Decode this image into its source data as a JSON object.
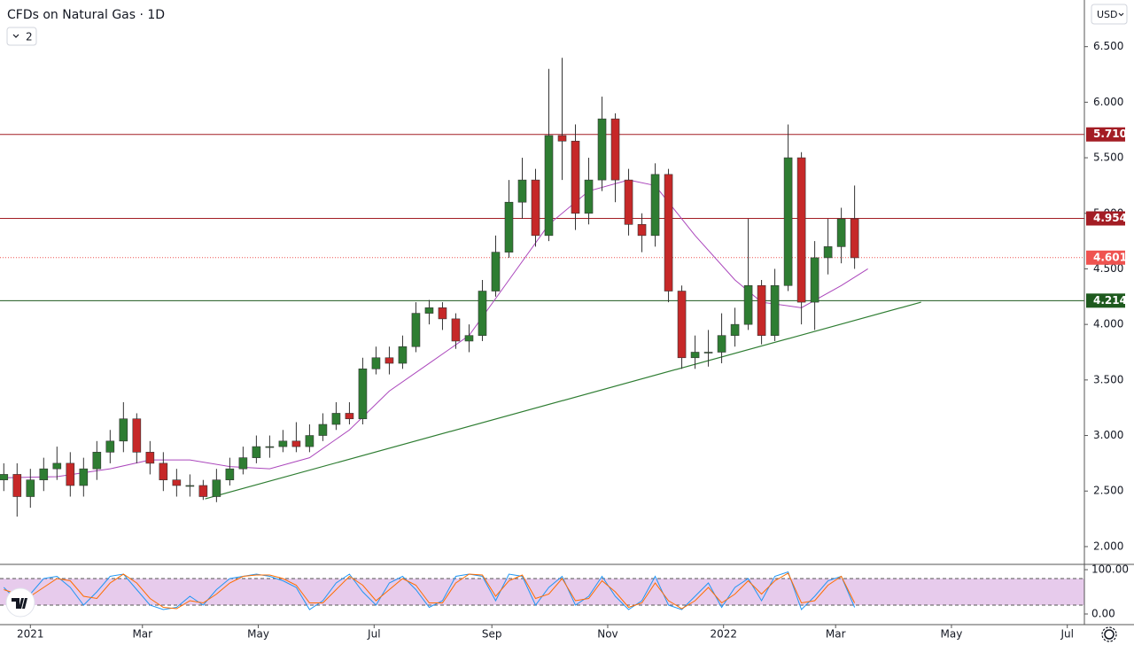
{
  "chart_data": [
    {
      "type": "candlestick",
      "title": "CFDs on Natural Gas · 1D",
      "x": [
        -14,
        -7,
        0,
        7,
        14,
        21,
        28,
        35,
        42,
        49,
        56,
        63,
        70,
        77,
        84,
        91,
        98,
        105,
        112,
        119,
        126,
        133,
        140,
        147,
        154,
        161,
        168,
        175,
        182,
        189,
        196,
        203,
        210,
        217,
        224,
        231,
        238,
        245,
        252,
        259,
        266,
        273,
        280,
        287,
        294,
        301,
        308,
        315,
        322,
        329,
        336,
        343,
        350,
        357,
        364,
        371,
        378,
        385,
        392,
        399,
        406,
        413,
        420,
        427,
        434
      ],
      "open": [
        2.6,
        2.65,
        2.45,
        2.6,
        2.7,
        2.75,
        2.55,
        2.7,
        2.85,
        2.95,
        3.15,
        2.85,
        2.75,
        2.6,
        2.55,
        2.55,
        2.45,
        2.6,
        2.7,
        2.8,
        2.9,
        2.9,
        2.95,
        2.9,
        3.0,
        3.1,
        3.2,
        3.15,
        3.6,
        3.7,
        3.65,
        3.8,
        4.1,
        4.15,
        4.05,
        3.85,
        3.9,
        4.3,
        4.65,
        5.1,
        5.3,
        4.8,
        5.7,
        5.65,
        5.0,
        5.3,
        5.85,
        5.3,
        4.9,
        4.8,
        5.35,
        4.3,
        3.7,
        3.75,
        3.75,
        3.9,
        4.0,
        4.35,
        3.9,
        4.35,
        5.5,
        4.2,
        4.6,
        4.7,
        4.95
      ],
      "high": [
        2.75,
        2.75,
        2.7,
        2.8,
        2.9,
        2.85,
        2.8,
        2.95,
        3.05,
        3.3,
        3.2,
        2.95,
        2.85,
        2.7,
        2.65,
        2.6,
        2.7,
        2.8,
        2.9,
        3.0,
        3.0,
        3.05,
        3.12,
        3.1,
        3.2,
        3.3,
        3.3,
        3.7,
        3.8,
        3.8,
        3.9,
        4.2,
        4.22,
        4.2,
        4.1,
        4.0,
        4.4,
        4.8,
        5.3,
        5.5,
        5.4,
        6.3,
        6.4,
        5.8,
        5.5,
        6.05,
        5.9,
        5.4,
        5.0,
        5.45,
        5.4,
        4.35,
        3.9,
        3.95,
        4.1,
        4.15,
        4.95,
        4.4,
        4.5,
        5.8,
        5.55,
        4.75,
        4.95,
        5.05,
        5.25
      ],
      "low": [
        2.5,
        2.27,
        2.35,
        2.5,
        2.6,
        2.45,
        2.45,
        2.6,
        2.75,
        2.85,
        2.75,
        2.65,
        2.5,
        2.45,
        2.45,
        2.42,
        2.4,
        2.55,
        2.65,
        2.75,
        2.8,
        2.85,
        2.85,
        2.85,
        2.95,
        3.05,
        3.1,
        3.1,
        3.55,
        3.55,
        3.6,
        3.75,
        4.0,
        3.95,
        3.78,
        3.75,
        3.85,
        4.25,
        4.6,
        4.95,
        4.7,
        4.75,
        5.3,
        4.85,
        4.9,
        5.2,
        5.1,
        4.8,
        4.65,
        4.7,
        4.2,
        3.6,
        3.6,
        3.62,
        3.65,
        3.8,
        3.95,
        3.82,
        3.85,
        4.3,
        4.0,
        3.95,
        4.45,
        4.55,
        4.5
      ],
      "close": [
        2.65,
        2.45,
        2.6,
        2.7,
        2.75,
        2.55,
        2.7,
        2.85,
        2.95,
        3.15,
        2.85,
        2.75,
        2.6,
        2.55,
        2.55,
        2.45,
        2.6,
        2.7,
        2.8,
        2.9,
        2.9,
        2.95,
        2.9,
        3.0,
        3.1,
        3.2,
        3.15,
        3.6,
        3.7,
        3.65,
        3.8,
        4.1,
        4.15,
        4.05,
        3.85,
        3.9,
        4.3,
        4.65,
        5.1,
        5.3,
        4.8,
        5.7,
        5.65,
        5.0,
        5.3,
        5.85,
        5.3,
        4.9,
        4.8,
        5.35,
        4.3,
        3.7,
        3.75,
        3.75,
        3.9,
        4.0,
        4.35,
        3.9,
        4.35,
        5.5,
        4.2,
        4.6,
        4.7,
        4.95,
        4.6
      ],
      "up_color": "#2e7d32",
      "down_color": "#c62828",
      "moving_average": {
        "color": "#ab47bc",
        "x": [
          -14,
          14,
          42,
          63,
          84,
          105,
          126,
          147,
          168,
          189,
          210,
          231,
          252,
          273,
          294,
          315,
          329,
          350,
          371,
          385,
          406,
          427,
          441
        ],
        "values": [
          2.62,
          2.63,
          2.7,
          2.78,
          2.78,
          2.72,
          2.7,
          2.8,
          3.05,
          3.4,
          3.65,
          3.9,
          4.4,
          4.9,
          5.2,
          5.3,
          5.25,
          4.8,
          4.4,
          4.2,
          4.15,
          4.35,
          4.5
        ]
      },
      "trendline": {
        "color": "#2e7d32",
        "x": [
          92,
          469
        ],
        "values": [
          2.43,
          4.2
        ]
      },
      "levels": [
        {
          "value": 5.71,
          "label": "5.710",
          "color": "#a31d24",
          "style": "solid"
        },
        {
          "value": 4.954,
          "label": "4.954",
          "color": "#a31d24",
          "style": "solid"
        },
        {
          "value": 4.601,
          "label": "4.601",
          "color": "#ef5350",
          "style": "dotted"
        },
        {
          "value": 4.214,
          "label": "4.214",
          "color": "#1e5a1e",
          "style": "solid"
        }
      ],
      "xlim": [
        -16,
        555
      ],
      "xticks": [
        {
          "value": 0,
          "label": "2021"
        },
        {
          "value": 59,
          "label": "Mar"
        },
        {
          "value": 120,
          "label": "May"
        },
        {
          "value": 181,
          "label": "Jul"
        },
        {
          "value": 243,
          "label": "Sep"
        },
        {
          "value": 304,
          "label": "Nov"
        },
        {
          "value": 365,
          "label": "2022"
        },
        {
          "value": 424,
          "label": "Mar"
        },
        {
          "value": 485,
          "label": "May"
        },
        {
          "value": 546,
          "label": "Jul"
        }
      ],
      "ylim": [
        1.84,
        6.92
      ],
      "yticks": [
        {
          "value": 2,
          "label": "2.000"
        },
        {
          "value": 2.5,
          "label": "2.500"
        },
        {
          "value": 3,
          "label": "3.000"
        },
        {
          "value": 3.5,
          "label": "3.500"
        },
        {
          "value": 4,
          "label": "4.000"
        },
        {
          "value": 4.5,
          "label": "4.500"
        },
        {
          "value": 5,
          "label": "5.000"
        },
        {
          "value": 5.5,
          "label": "5.500"
        },
        {
          "value": 6,
          "label": "6.000"
        },
        {
          "value": 6.5,
          "label": "6.500"
        }
      ]
    },
    {
      "type": "line",
      "x": [
        -14,
        -7,
        0,
        7,
        14,
        21,
        28,
        35,
        42,
        49,
        56,
        63,
        70,
        77,
        84,
        91,
        98,
        105,
        112,
        119,
        126,
        133,
        140,
        147,
        154,
        161,
        168,
        175,
        182,
        189,
        196,
        203,
        210,
        217,
        224,
        231,
        238,
        245,
        252,
        259,
        266,
        273,
        280,
        287,
        294,
        301,
        308,
        315,
        322,
        329,
        336,
        343,
        350,
        357,
        364,
        371,
        378,
        385,
        392,
        399,
        406,
        413,
        420,
        427,
        434
      ],
      "series": [
        {
          "color": "#2196f3",
          "values": [
            60,
            30,
            45,
            80,
            85,
            60,
            20,
            50,
            85,
            90,
            55,
            20,
            10,
            15,
            40,
            20,
            55,
            80,
            85,
            90,
            85,
            75,
            60,
            10,
            30,
            70,
            90,
            50,
            20,
            70,
            85,
            55,
            15,
            30,
            85,
            90,
            85,
            30,
            90,
            85,
            20,
            60,
            85,
            20,
            40,
            85,
            40,
            10,
            30,
            85,
            20,
            10,
            40,
            70,
            15,
            60,
            80,
            30,
            85,
            95,
            10,
            40,
            75,
            85,
            15
          ]
        },
        {
          "color": "#ff6d00",
          "values": [
            55,
            45,
            40,
            60,
            80,
            75,
            40,
            35,
            70,
            90,
            70,
            35,
            15,
            12,
            30,
            25,
            45,
            70,
            85,
            88,
            88,
            80,
            65,
            25,
            25,
            55,
            85,
            65,
            30,
            55,
            80,
            65,
            25,
            25,
            70,
            90,
            88,
            40,
            75,
            88,
            35,
            45,
            80,
            30,
            35,
            75,
            50,
            15,
            25,
            70,
            30,
            12,
            30,
            60,
            25,
            45,
            75,
            45,
            75,
            92,
            25,
            30,
            65,
            85,
            25
          ]
        }
      ],
      "bands": [
        20,
        80
      ],
      "band_color": "#e1bee7",
      "xlim": [
        -16,
        555
      ],
      "ylim": [
        -24,
        112
      ],
      "yticks": [
        {
          "value": 100,
          "label": "100.00"
        },
        {
          "value": 0,
          "label": "0.00"
        }
      ]
    }
  ],
  "toolbar": {
    "indicator_count": "2",
    "currency": "USD"
  }
}
